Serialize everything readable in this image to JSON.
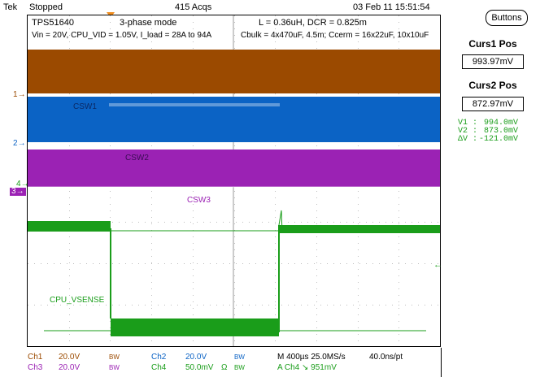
{
  "header": {
    "brand": "Tek",
    "run_state": "Stopped",
    "acquisitions": "415 Acqs",
    "datetime": "03 Feb 11 15:51:54"
  },
  "annotations": {
    "device": "TPS51640",
    "mode": "3-phase mode",
    "conditions": "Vin = 20V, CPU_VID = 1.05V, I_load = 28A to 94A",
    "inductor": "L = 0.36uH, DCR = 0.825m",
    "caps": "Cbulk = 4x470uF, 4.5m;  Ccerm = 16x22uF, 10x10uF",
    "csw1": "CSW1",
    "csw2": "CSW2",
    "csw3": "CSW3",
    "vsense": "CPU_VSENSE"
  },
  "channel_markers": {
    "ch1": "1",
    "ch2": "2",
    "ch4": "4",
    "ch3": "3"
  },
  "side_menu": {
    "buttons_label": "Buttons",
    "curs1_title": "Curs1 Pos",
    "curs1_value": "993.97mV",
    "curs2_title": "Curs2 Pos",
    "curs2_value": "872.97mV",
    "readout_v1_label": "V1 :",
    "readout_v1_value": "994.0mV",
    "readout_v2_label": "V2 :",
    "readout_v2_value": "873.0mV",
    "readout_dv_label": "ΔV :",
    "readout_dv_value": "-121.0mV"
  },
  "footer": {
    "ch1_name": "Ch1",
    "ch1_scale": "20.0V",
    "ch1_bw": "BW",
    "ch2_name": "Ch2",
    "ch2_scale": "20.0V",
    "ch2_bw": "BW",
    "ch3_name": "Ch3",
    "ch3_scale": "20.0V",
    "ch3_bw": "BW",
    "ch4_name": "Ch4",
    "ch4_scale": "50.0mV",
    "ch4_ohm": "Ω",
    "ch4_bw": "BW",
    "timebase": "M 400µs 25.0MS/s",
    "per_point": "40.0ns/pt",
    "trigger": "A  Ch4  ↘  951mV"
  },
  "colors": {
    "ch1": "#9b4a00",
    "ch2": "#0b63c5",
    "ch3": "#9b22b4",
    "ch4": "#1a9d1a",
    "grid": "#bdbdbd",
    "trigger_marker": "#f08c1c"
  }
}
